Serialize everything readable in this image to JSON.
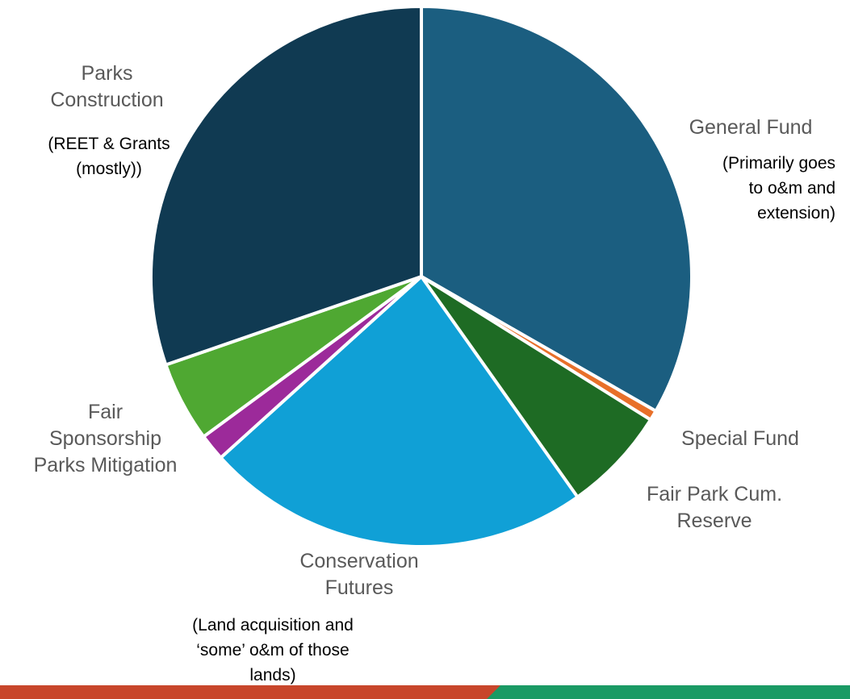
{
  "chart_data": {
    "type": "pie",
    "title": "",
    "slices": [
      {
        "name": "General Fund",
        "value": 33.3,
        "color": "#1b5e80"
      },
      {
        "name": "Special Fund",
        "value": 0.6,
        "color": "#e8702a"
      },
      {
        "name": "Fair Park Cum. Reserve",
        "value": 6.3,
        "color": "#1e6b24"
      },
      {
        "name": "Conservation Futures",
        "value": 23.1,
        "color": "#10a0d6"
      },
      {
        "name": "Parks Mitigation",
        "value": 1.6,
        "color": "#9c2a9a"
      },
      {
        "name": "Fair Sponsorship",
        "value": 4.8,
        "color": "#4fa832"
      },
      {
        "name": "Parks Construction",
        "value": 30.3,
        "color": "#103a52"
      }
    ],
    "labels": {
      "general_fund": "General Fund",
      "special_fund": "Special Fund",
      "fair_park": "Fair Park Cum.\nReserve",
      "conservation": "Conservation\nFutures",
      "fair_sponsorship": "Fair\nSponsorship\nParks Mitigation",
      "parks_construction": "Parks\nConstruction"
    },
    "annotations": {
      "general_fund": "(Primarily goes\nto o&m and\nextension)",
      "conservation": "(Land acquisition and\n‘some’ o&m of those\nlands)",
      "parks_construction": "(REET & Grants\n(mostly))"
    }
  },
  "colors": {
    "footer_left": "#c8462b",
    "footer_right": "#1a9a64"
  }
}
